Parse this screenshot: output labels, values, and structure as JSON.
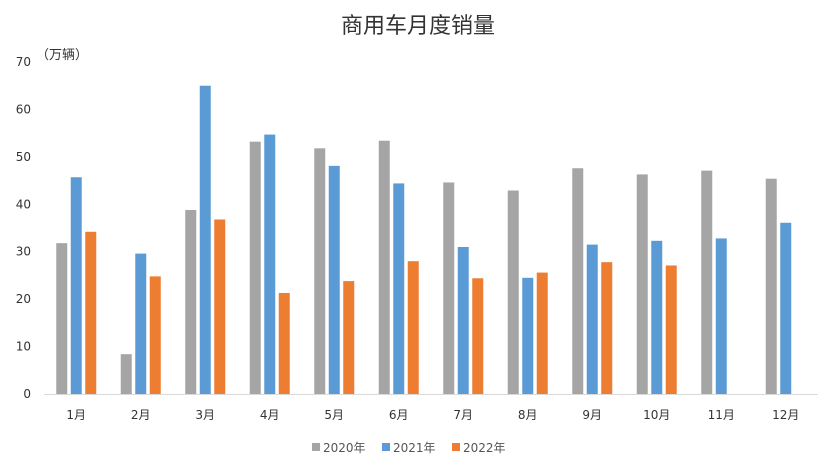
{
  "chart_data": {
    "type": "bar",
    "title": "商用车月度销量",
    "unit_label": "（万辆）",
    "categories": [
      "1月",
      "2月",
      "3月",
      "4月",
      "5月",
      "6月",
      "7月",
      "8月",
      "9月",
      "10月",
      "11月",
      "12月"
    ],
    "series": [
      {
        "name": "2020年",
        "color": "#a5a5a5",
        "values": [
          31.8,
          8.4,
          38.8,
          53.2,
          51.8,
          53.4,
          44.6,
          42.9,
          47.6,
          46.3,
          47.1,
          45.4
        ]
      },
      {
        "name": "2021年",
        "color": "#5b9bd5",
        "values": [
          45.7,
          29.6,
          65.0,
          54.7,
          48.1,
          44.4,
          31.0,
          24.5,
          31.5,
          32.3,
          32.8,
          36.1
        ]
      },
      {
        "name": "2022年",
        "color": "#ed7d31",
        "values": [
          34.2,
          24.8,
          36.8,
          21.3,
          23.8,
          28.0,
          24.4,
          25.6,
          27.8,
          27.1,
          null,
          null
        ]
      }
    ],
    "ylim": [
      0,
      70
    ],
    "yticks": [
      0,
      10,
      20,
      30,
      40,
      50,
      60,
      70
    ],
    "grid": false,
    "legend_position": "bottom"
  }
}
